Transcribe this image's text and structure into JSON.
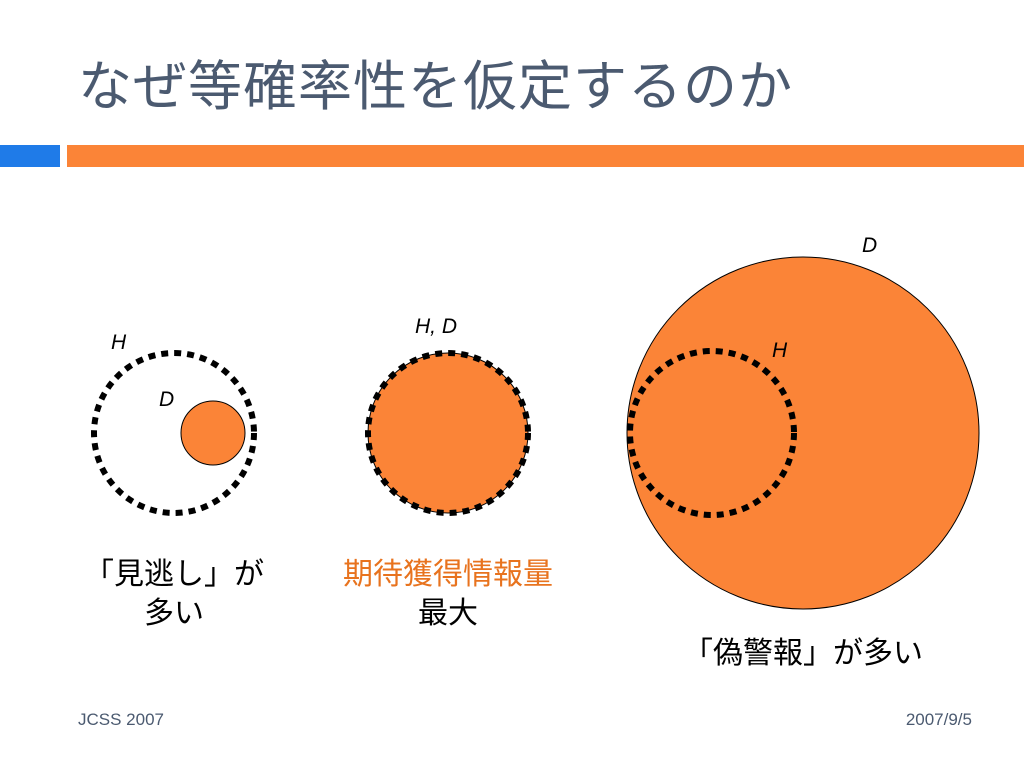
{
  "slide": {
    "title": "なぜ等確率性を仮定するのか",
    "footer_left": "JCSS 2007",
    "footer_right": "2007/9/5"
  },
  "colors": {
    "title": "#4b5a70",
    "accent_blue": "#1f7be8",
    "accent_orange": "#fb8437",
    "fill": "#fb8437",
    "highlight_text": "#e8731e"
  },
  "panels": [
    {
      "labels": {
        "outer": "H",
        "inner": "D"
      },
      "caption_lines": [
        "「見逃し」が",
        "多い"
      ]
    },
    {
      "labels": {
        "combined": "H, D"
      },
      "caption_lines": [
        "期待獲得情報量",
        "最大"
      ]
    },
    {
      "labels": {
        "outer": "D",
        "inner": "H"
      },
      "caption_lines": [
        "「偽警報」が多い"
      ]
    }
  ]
}
